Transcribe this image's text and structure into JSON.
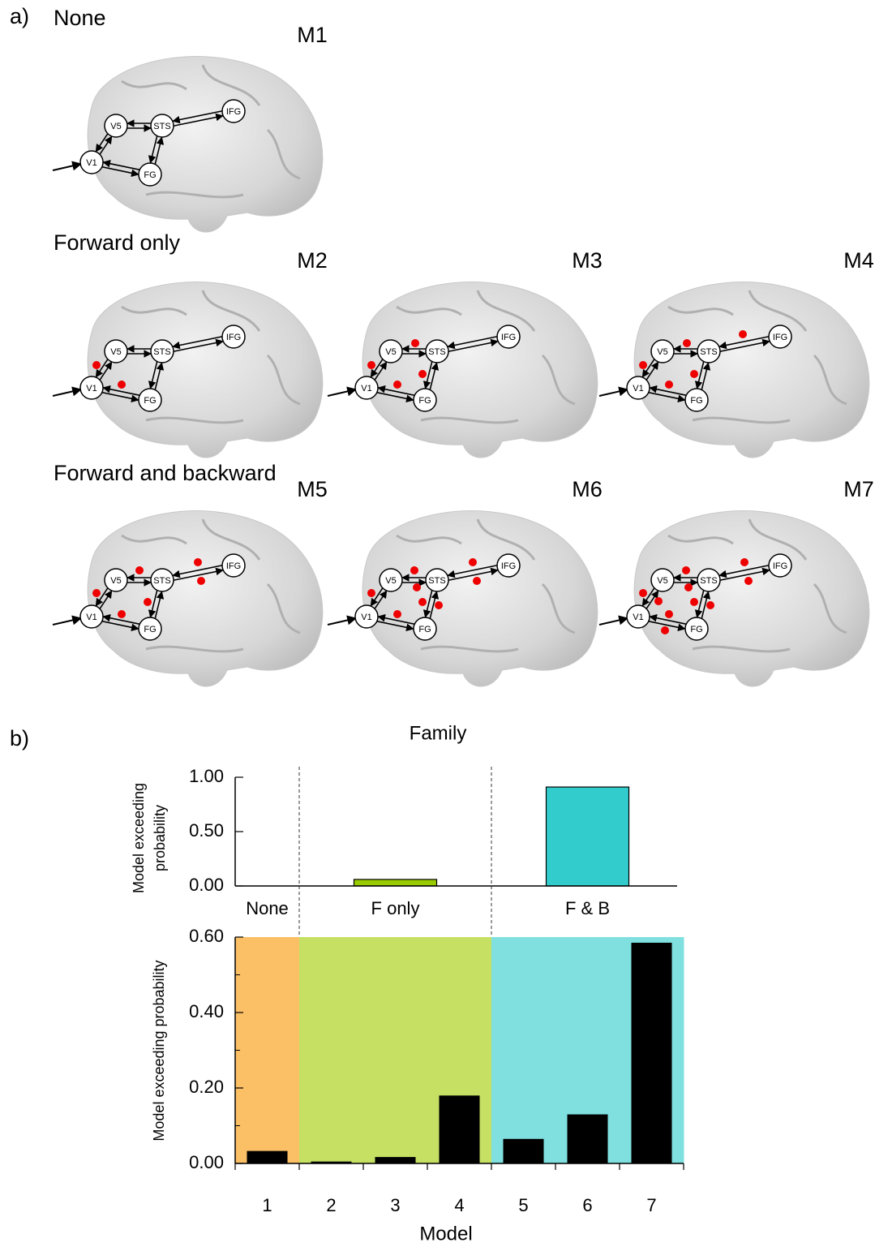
{
  "panel_a": {
    "label": "a)",
    "groups": [
      "None",
      "Forward only",
      "Forward and backward"
    ],
    "models": [
      "M1",
      "M2",
      "M3",
      "M4",
      "M5",
      "M6",
      "M7"
    ],
    "nodes": [
      "V1",
      "V5",
      "STS",
      "FG",
      "IFG"
    ]
  },
  "panel_b": {
    "label": "b)"
  },
  "chart_data": [
    {
      "type": "bar",
      "title": "Family",
      "ylabel": [
        "Model exceeding",
        "probability"
      ],
      "categories": [
        "None",
        "F only",
        "F & B"
      ],
      "values": [
        0,
        0.06,
        0.91
      ],
      "colors": [
        "#fbbf66",
        "#99cc00",
        "#33cccc"
      ],
      "ylim": [
        0,
        1
      ],
      "yticks": [
        {
          "value": 0,
          "label": "0.00"
        },
        {
          "value": 0.5,
          "label": "0.50"
        },
        {
          "value": 1,
          "label": "1.00"
        }
      ]
    },
    {
      "type": "bar",
      "xlabel": "Model",
      "ylabel": "Model exceeding probability",
      "categories": [
        "1",
        "2",
        "3",
        "4",
        "5",
        "6",
        "7"
      ],
      "values": [
        0.033,
        0.005,
        0.017,
        0.18,
        0.065,
        0.13,
        0.585
      ],
      "color": "#000000",
      "background_colors": [
        "#fbbf66",
        "#c5e063",
        "#c5e063",
        "#c5e063",
        "#80e0e0",
        "#80e0e0",
        "#80e0e0"
      ],
      "ylim": [
        0,
        0.6
      ],
      "yticks": [
        {
          "value": 0,
          "label": "0.00"
        },
        {
          "value": 0.2,
          "label": "0.20"
        },
        {
          "value": 0.4,
          "label": "0.40"
        },
        {
          "value": 0.6,
          "label": "0.60"
        }
      ],
      "yticks_minor": [
        0.1,
        0.3,
        0.5
      ]
    }
  ]
}
